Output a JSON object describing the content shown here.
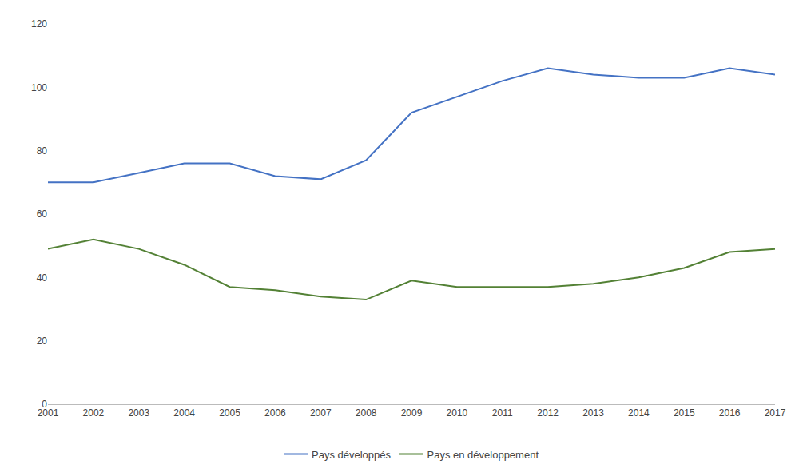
{
  "chart_data": {
    "type": "line",
    "x": [
      2001,
      2002,
      2003,
      2004,
      2005,
      2006,
      2007,
      2008,
      2009,
      2010,
      2011,
      2012,
      2013,
      2014,
      2015,
      2016,
      2017
    ],
    "series": [
      {
        "name": "Pays développés",
        "color": "#4472C4",
        "values": [
          70,
          70,
          73,
          76,
          76,
          72,
          71,
          77,
          92,
          97,
          102,
          106,
          104,
          103,
          103,
          106,
          104
        ]
      },
      {
        "name": "Pays en développement",
        "color": "#538135",
        "values": [
          49,
          52,
          49,
          44,
          37,
          36,
          34,
          33,
          39,
          37,
          37,
          37,
          38,
          40,
          43,
          48,
          49
        ]
      }
    ],
    "xlim": [
      2001,
      2017
    ],
    "xticks": [
      2001,
      2002,
      2003,
      2004,
      2005,
      2006,
      2007,
      2008,
      2009,
      2010,
      2011,
      2012,
      2013,
      2014,
      2015,
      2016,
      2017
    ],
    "ylim": [
      0,
      120
    ],
    "yticks": [
      0,
      20,
      40,
      60,
      80,
      100,
      120
    ],
    "grid": false,
    "legend": "bottom"
  }
}
